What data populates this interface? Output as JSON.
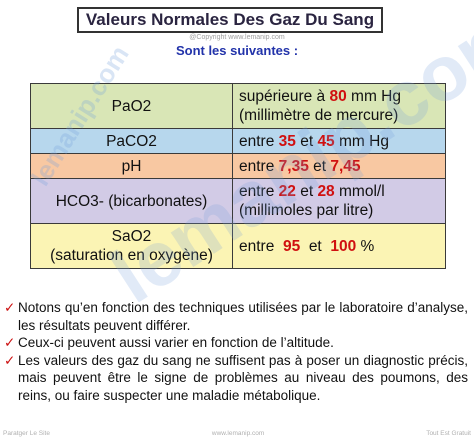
{
  "title": "Valeurs Normales Des Gaz Du Sang",
  "copyright": "@Copyright www.lemanip.com",
  "subtitle": "Sont les suivantes :",
  "rows": [
    {
      "name": "PaO2",
      "name2": "",
      "value_before": "supérieure à ",
      "value_bold": "80",
      "value_after": " mm Hg",
      "value_bold2": "",
      "value_after2": "",
      "value_line2": "(millimètre de mercure)"
    },
    {
      "name": "PaCO2",
      "name2": "",
      "value_before": "entre ",
      "value_bold": "35",
      "value_after": " et ",
      "value_bold2": "45",
      "value_after2": " mm Hg",
      "value_line2": ""
    },
    {
      "name": "pH",
      "name2": "",
      "value_before": "entre ",
      "value_bold": "7,35",
      "value_after": " et ",
      "value_bold2": "7,45",
      "value_after2": "",
      "value_line2": ""
    },
    {
      "name": "HCO3- (bicarbonates)",
      "name2": "",
      "value_before": "entre ",
      "value_bold": "22",
      "value_after": " et ",
      "value_bold2": "28",
      "value_after2": " mmol/l",
      "value_line2": "(millimoles par litre)"
    },
    {
      "name": "SaO2",
      "name2": "(saturation en oxygène)",
      "value_before": "entre  ",
      "value_bold": "95",
      "value_after": "  et  ",
      "value_bold2": "100",
      "value_after2": " %",
      "value_line2": ""
    }
  ],
  "notes": [
    "Notons qu’en fonction des techniques utilisées par le laboratoire d’analyse, les résultats peuvent différer.",
    "Ceux-ci peuvent aussi varier en fonction de l’altitude.",
    "Les valeurs des gaz du sang ne suffisent pas à poser un diagnostic précis, mais peuvent être le signe de problèmes au niveau des poumons, des reins, ou faire suspecter une maladie métabolique."
  ],
  "footer": {
    "left": "Paratger Le Site",
    "center": "www.lemanip.com",
    "right": "Tout Est Gratuit"
  },
  "watermark": "lemanip.com",
  "watermark_small": "lemanip.com",
  "colors": {
    "green": "#d9e6b6",
    "blue": "#b7d7ed",
    "orange": "#f8c8a2",
    "lilac": "#d2cbe6",
    "yellow": "#fbf4b4",
    "highlight": "#d01010",
    "check": "#cc1111"
  },
  "icons": {
    "bullet": "check-mark-icon"
  }
}
